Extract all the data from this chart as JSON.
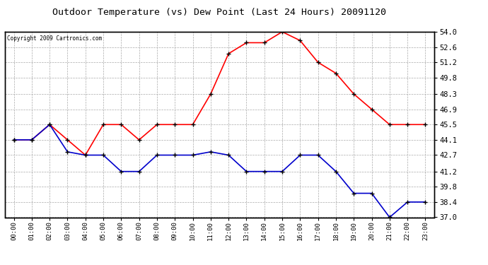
{
  "title": "Outdoor Temperature (vs) Dew Point (Last 24 Hours) 20091120",
  "copyright": "Copyright 2009 Cartronics.com",
  "hours": [
    0,
    1,
    2,
    3,
    4,
    5,
    6,
    7,
    8,
    9,
    10,
    11,
    12,
    13,
    14,
    15,
    16,
    17,
    18,
    19,
    20,
    21,
    22,
    23
  ],
  "temp": [
    44.1,
    44.1,
    45.5,
    44.1,
    42.7,
    45.5,
    45.5,
    44.1,
    45.5,
    45.5,
    45.5,
    48.3,
    52.0,
    53.0,
    53.0,
    54.0,
    53.2,
    51.2,
    50.2,
    48.3,
    46.9,
    45.5,
    45.5,
    45.5
  ],
  "dew": [
    44.1,
    44.1,
    45.5,
    43.0,
    42.7,
    42.7,
    41.2,
    41.2,
    42.7,
    42.7,
    42.7,
    43.0,
    42.7,
    41.2,
    41.2,
    41.2,
    42.7,
    42.7,
    41.2,
    39.2,
    39.2,
    37.0,
    38.4,
    38.4
  ],
  "temp_color": "#ff0000",
  "dew_color": "#0000cc",
  "bg_color": "#ffffff",
  "grid_color": "#aaaaaa",
  "ylim": [
    37.0,
    54.0
  ],
  "yticks": [
    37.0,
    38.4,
    39.8,
    41.2,
    42.7,
    44.1,
    45.5,
    46.9,
    48.3,
    49.8,
    51.2,
    52.6,
    54.0
  ],
  "marker": "+",
  "marker_color": "#000000",
  "marker_size": 5,
  "line_width": 1.2
}
